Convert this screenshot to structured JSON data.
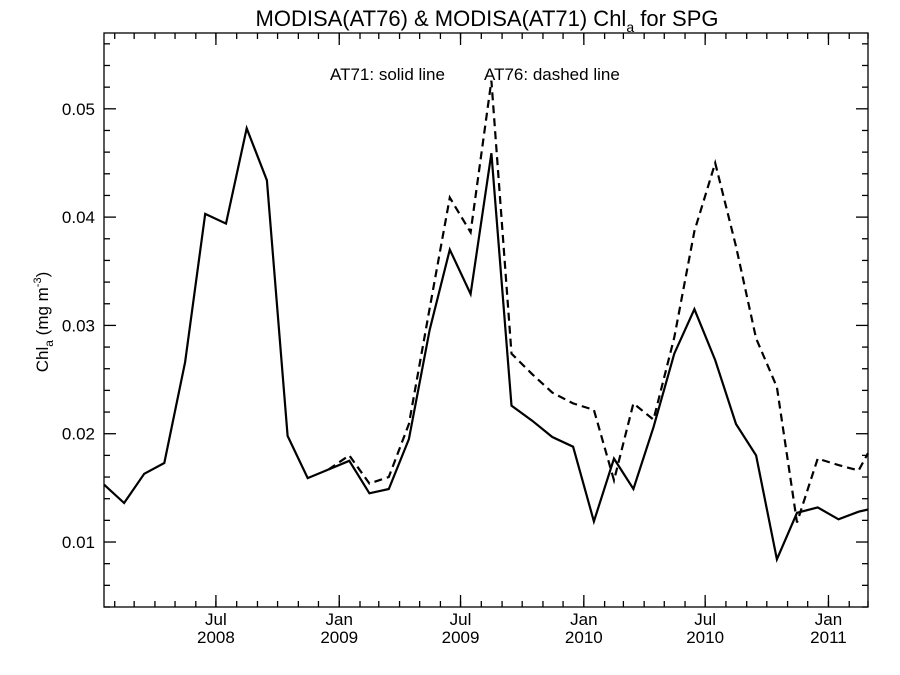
{
  "chart_data": {
    "type": "line",
    "title": {
      "main": "MODISA(AT76) & MODISA(AT71)  Chl",
      "sub": "a",
      "rest": " for SPG"
    },
    "legend_text": {
      "solid": "AT71: solid line",
      "dashed": "AT76: dashed line"
    },
    "ylabel": {
      "main": "Chl",
      "sub": "a",
      "rest": " (mg m",
      "sup": "-3",
      "close": ")"
    },
    "ylim": [
      0.004,
      0.057
    ],
    "yticks": [
      0.01,
      0.02,
      0.03,
      0.04,
      0.05
    ],
    "ytick_labels": [
      "0.01",
      "0.02",
      "0.03",
      "0.04",
      "0.05"
    ],
    "xlim": [
      "2008-01-16",
      "2011-03-01"
    ],
    "xticks": [
      {
        "date": "2008-07-01",
        "month": "Jul",
        "year": "2008"
      },
      {
        "date": "2009-01-01",
        "month": "Jan",
        "year": "2009"
      },
      {
        "date": "2009-07-01",
        "month": "Jul",
        "year": "2009"
      },
      {
        "date": "2010-01-01",
        "month": "Jan",
        "year": "2010"
      },
      {
        "date": "2010-07-01",
        "month": "Jul",
        "year": "2010"
      },
      {
        "date": "2011-01-01",
        "month": "Jan",
        "year": "2011"
      }
    ],
    "series": [
      {
        "name": "AT71",
        "style": "solid",
        "x": [
          "2008-01-16",
          "2008-02-15",
          "2008-03-16",
          "2008-04-15",
          "2008-05-16",
          "2008-06-15",
          "2008-07-16",
          "2008-08-16",
          "2008-09-15",
          "2008-10-16",
          "2008-11-15",
          "2008-12-16",
          "2009-01-16",
          "2009-02-15",
          "2009-03-16",
          "2009-04-15",
          "2009-05-16",
          "2009-06-15",
          "2009-07-16",
          "2009-08-16",
          "2009-09-15",
          "2009-10-16",
          "2009-11-15",
          "2009-12-16",
          "2010-01-16",
          "2010-02-15",
          "2010-03-16",
          "2010-04-15",
          "2010-05-16",
          "2010-06-15",
          "2010-07-16",
          "2010-08-16",
          "2010-09-15",
          "2010-10-16",
          "2010-11-15",
          "2010-12-16",
          "2011-01-16",
          "2011-02-15",
          "2011-03-01"
        ],
        "y": [
          0.0153,
          0.0136,
          0.0163,
          0.0173,
          0.0266,
          0.0403,
          0.0394,
          0.0482,
          0.0434,
          0.0198,
          0.0159,
          0.0167,
          0.0175,
          0.0145,
          0.0149,
          0.0195,
          0.0296,
          0.037,
          0.0329,
          0.0459,
          0.0226,
          0.0212,
          0.0197,
          0.0188,
          0.0119,
          0.0177,
          0.0149,
          0.0206,
          0.0274,
          0.0315,
          0.0268,
          0.0209,
          0.018,
          0.0084,
          0.0127,
          0.0132,
          0.0121,
          0.0128,
          0.013
        ]
      },
      {
        "name": "AT76",
        "style": "dashed",
        "x": [
          "2008-12-16",
          "2009-01-16",
          "2009-02-15",
          "2009-03-16",
          "2009-04-15",
          "2009-05-16",
          "2009-06-15",
          "2009-07-16",
          "2009-08-16",
          "2009-09-15",
          "2009-10-16",
          "2009-11-15",
          "2009-12-16",
          "2010-01-16",
          "2010-02-15",
          "2010-03-16",
          "2010-04-15",
          "2010-05-16",
          "2010-06-15",
          "2010-07-16",
          "2010-08-16",
          "2010-09-15",
          "2010-10-16",
          "2010-11-15",
          "2010-12-16",
          "2011-01-16",
          "2011-02-15",
          "2011-03-01"
        ],
        "y": [
          0.0167,
          0.018,
          0.0154,
          0.016,
          0.0209,
          0.0316,
          0.0418,
          0.0386,
          0.0526,
          0.0274,
          0.0255,
          0.0238,
          0.0228,
          0.0222,
          0.0157,
          0.0228,
          0.0213,
          0.0289,
          0.0387,
          0.045,
          0.0373,
          0.0288,
          0.0243,
          0.0118,
          0.0177,
          0.0171,
          0.0166,
          0.0182
        ]
      }
    ],
    "grid": false
  }
}
